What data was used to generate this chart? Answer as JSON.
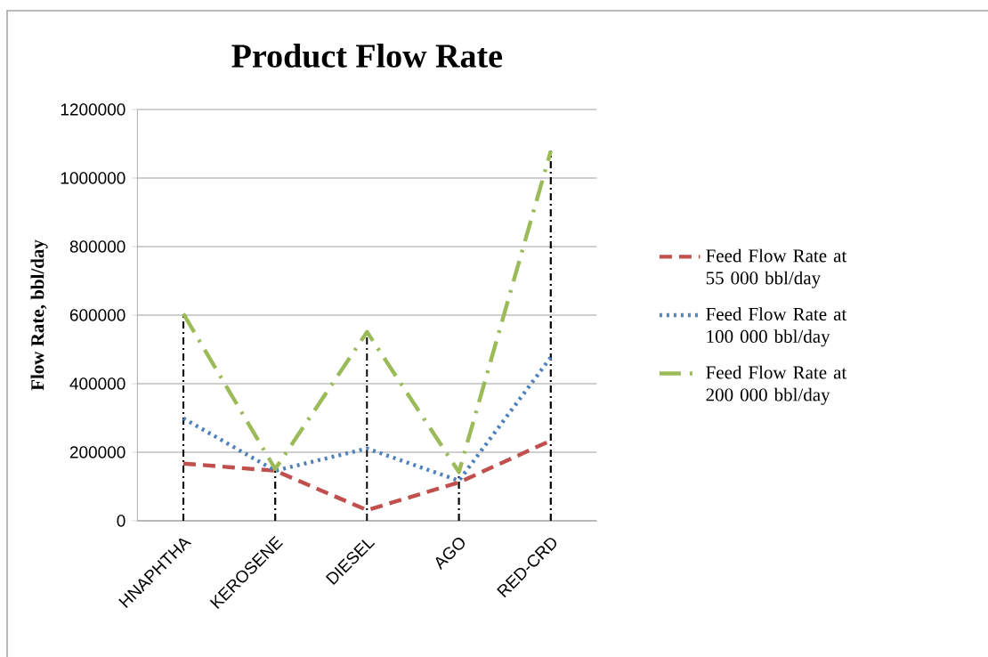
{
  "chart_data": {
    "type": "line",
    "title": "Product Flow Rate",
    "ylabel": "Flow Rate, bbl/day",
    "categories": [
      "HNAPHTHA",
      "KEROSENE",
      "DIESEL",
      "AGO",
      "RED-CRD"
    ],
    "series": [
      {
        "name": "Feed Flow Rate at 55 000 bbl/day",
        "color": "#c0504d",
        "line_style": "dashed",
        "values": [
          167000,
          146000,
          31000,
          112000,
          234000
        ]
      },
      {
        "name": "Feed Flow Rate at 100 000 bbl/day",
        "color": "#4f81bd",
        "line_style": "dotted",
        "values": [
          299000,
          146000,
          211000,
          117000,
          477000
        ]
      },
      {
        "name": "Feed Flow Rate at 200 000 bbl/day",
        "color": "#9bbb59",
        "line_style": "dashdot",
        "values": [
          604000,
          151000,
          551000,
          142000,
          1079000
        ]
      }
    ],
    "ref_lines": [
      {
        "axis": "x",
        "value": "HNAPHTHA",
        "color": "#000000",
        "line_style": "dashdot"
      },
      {
        "axis": "x",
        "value": "KEROSENE",
        "color": "#000000",
        "line_style": "dashdot"
      },
      {
        "axis": "x",
        "value": "DIESEL",
        "color": "#000000",
        "line_style": "dashdot"
      },
      {
        "axis": "x",
        "value": "AGO",
        "color": "#000000",
        "line_style": "dashdot"
      },
      {
        "axis": "x",
        "value": "RED-CRD",
        "color": "#000000",
        "line_style": "dashdot"
      }
    ],
    "ylim": [
      0,
      1200000
    ],
    "yticks": [
      0,
      200000,
      400000,
      600000,
      800000,
      1000000,
      1200000
    ],
    "grid": "y",
    "legend": "right",
    "marker": "none"
  }
}
